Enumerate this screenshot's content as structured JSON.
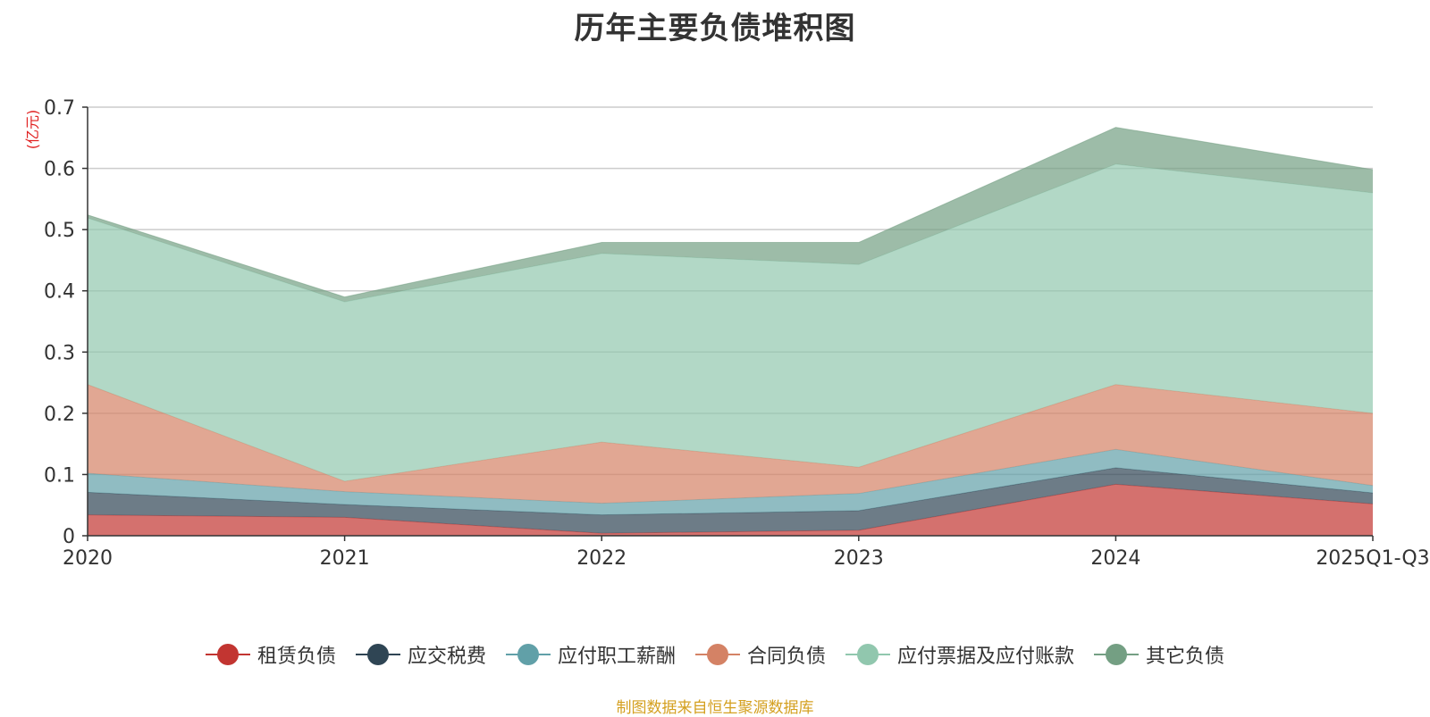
{
  "chart_data": {
    "type": "area",
    "stacked": true,
    "title": "历年主要负债堆积图",
    "unit_label": "(亿元)",
    "categories": [
      "2020",
      "2021",
      "2022",
      "2023",
      "2024",
      "2025Q1-Q3"
    ],
    "ylim": [
      0,
      0.7
    ],
    "yticks": [
      0,
      0.1,
      0.2,
      0.3,
      0.4,
      0.5,
      0.6,
      0.7
    ],
    "ytick_labels": [
      "0",
      "0.1",
      "0.2",
      "0.3",
      "0.4",
      "0.5",
      "0.6",
      "0.7"
    ],
    "grid": true,
    "legend_position": "bottom",
    "series": [
      {
        "name": "租赁负债",
        "color": "#c23531",
        "values": [
          0.034,
          0.03,
          0.004,
          0.009,
          0.084,
          0.052
        ]
      },
      {
        "name": "应交税费",
        "color": "#2f4554",
        "values": [
          0.037,
          0.021,
          0.03,
          0.032,
          0.027,
          0.018
        ]
      },
      {
        "name": "应付职工薪酬",
        "color": "#61a0a8",
        "values": [
          0.031,
          0.021,
          0.019,
          0.028,
          0.03,
          0.012
        ]
      },
      {
        "name": "合同负债",
        "color": "#d48265",
        "values": [
          0.145,
          0.017,
          0.1,
          0.043,
          0.106,
          0.118
        ]
      },
      {
        "name": "应付票据及应付账款",
        "color": "#91c7ae",
        "values": [
          0.272,
          0.293,
          0.308,
          0.331,
          0.36,
          0.36
        ]
      },
      {
        "name": "其它负债",
        "color": "#749f83",
        "values": [
          0.005,
          0.008,
          0.018,
          0.036,
          0.06,
          0.038
        ]
      }
    ]
  },
  "footer": {
    "source_note": "制图数据来自恒生聚源数据库"
  }
}
